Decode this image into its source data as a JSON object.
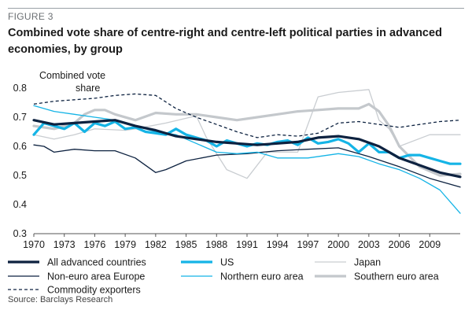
{
  "figure_label": "FIGURE 3",
  "title": "Combined vote share of centre-right and centre-left political parties in advanced economies, by group",
  "source": "Source: Barclays Research",
  "colors": {
    "all_advanced": "#0d2240",
    "us": "#15b4e6",
    "japan": "#c9cdd1",
    "non_euro": "#0d2240",
    "northern_euro": "#15b4e6",
    "southern_euro": "#c4c8cc",
    "commodity": "#0d2240",
    "axis": "#555555"
  },
  "chart_data": {
    "type": "line",
    "ylabel": "Combined vote share",
    "ylim": [
      0.3,
      0.8
    ],
    "yticks": [
      "0.8",
      "0.7",
      "0.6",
      "0.5",
      "0.4",
      "0.3"
    ],
    "xlim": [
      1970,
      2012
    ],
    "xticks": [
      "1970",
      "1973",
      "1976",
      "1979",
      "1982",
      "1985",
      "1988",
      "1991",
      "1994",
      "1997",
      "2000",
      "2003",
      "2006",
      "2009"
    ],
    "grid": false,
    "legend_position": "bottom",
    "series": [
      {
        "name": "Japan",
        "style": "thin-light",
        "x": [
          1970,
          1972,
          1974,
          1976,
          1979,
          1980,
          1983,
          1986,
          1987,
          1989,
          1991,
          1993,
          1996,
          1998,
          2000,
          2003,
          2004,
          2005,
          2006,
          2009,
          2012
        ],
        "y": [
          0.64,
          0.625,
          0.64,
          0.66,
          0.655,
          0.66,
          0.68,
          0.705,
          0.63,
          0.52,
          0.49,
          0.58,
          0.58,
          0.77,
          0.785,
          0.795,
          0.69,
          0.66,
          0.6,
          0.64,
          0.64
        ]
      },
      {
        "name": "Southern euro area",
        "style": "thick-light",
        "x": [
          1970,
          1972,
          1974,
          1975,
          1976,
          1977,
          1978,
          1980,
          1982,
          1984,
          1986,
          1988,
          1990,
          1992,
          1994,
          1996,
          1998,
          2000,
          2002,
          2003,
          2004,
          2005,
          2006,
          2008,
          2010,
          2012
        ],
        "y": [
          0.67,
          0.66,
          0.68,
          0.71,
          0.725,
          0.725,
          0.71,
          0.69,
          0.715,
          0.71,
          0.71,
          0.7,
          0.69,
          0.7,
          0.71,
          0.72,
          0.725,
          0.73,
          0.73,
          0.745,
          0.72,
          0.67,
          0.6,
          0.53,
          0.5,
          0.505
        ]
      },
      {
        "name": "Commodity exporters",
        "style": "dashed",
        "x": [
          1970,
          1972,
          1974,
          1976,
          1978,
          1980,
          1982,
          1984,
          1986,
          1988,
          1990,
          1992,
          1994,
          1996,
          1998,
          2000,
          2002,
          2004,
          2006,
          2008,
          2010,
          2012
        ],
        "y": [
          0.745,
          0.755,
          0.76,
          0.765,
          0.775,
          0.78,
          0.775,
          0.73,
          0.7,
          0.675,
          0.65,
          0.63,
          0.64,
          0.635,
          0.645,
          0.68,
          0.685,
          0.675,
          0.665,
          0.675,
          0.685,
          0.69
        ]
      },
      {
        "name": "Non-euro area Europe",
        "style": "thin-dark",
        "x": [
          1970,
          1971,
          1972,
          1974,
          1976,
          1978,
          1980,
          1982,
          1983,
          1985,
          1988,
          1991,
          1994,
          1997,
          2000,
          2003,
          2006,
          2009,
          2012
        ],
        "y": [
          0.605,
          0.6,
          0.58,
          0.59,
          0.585,
          0.585,
          0.56,
          0.51,
          0.52,
          0.55,
          0.57,
          0.575,
          0.585,
          0.59,
          0.595,
          0.565,
          0.53,
          0.49,
          0.46
        ]
      },
      {
        "name": "Northern euro area",
        "style": "thin-blue",
        "x": [
          1970,
          1972,
          1974,
          1976,
          1978,
          1980,
          1982,
          1984,
          1986,
          1988,
          1990,
          1992,
          1994,
          1997,
          2000,
          2002,
          2004,
          2006,
          2008,
          2010,
          2012
        ],
        "y": [
          0.74,
          0.72,
          0.71,
          0.7,
          0.69,
          0.67,
          0.65,
          0.64,
          0.61,
          0.58,
          0.575,
          0.58,
          0.56,
          0.56,
          0.575,
          0.565,
          0.54,
          0.52,
          0.49,
          0.45,
          0.37
        ]
      },
      {
        "name": "US",
        "style": "thick-blue",
        "x": [
          1970,
          1971,
          1972,
          1973,
          1974,
          1975,
          1976,
          1977,
          1978,
          1979,
          1980,
          1981,
          1982,
          1983,
          1984,
          1985,
          1986,
          1987,
          1988,
          1989,
          1990,
          1991,
          1992,
          1993,
          1994,
          1995,
          1996,
          1997,
          1998,
          1999,
          2000,
          2001,
          2002,
          2003,
          2004,
          2005,
          2006,
          2007,
          2008,
          2009,
          2010,
          2011,
          2012
        ],
        "y": [
          0.64,
          0.68,
          0.67,
          0.66,
          0.68,
          0.65,
          0.68,
          0.67,
          0.685,
          0.66,
          0.665,
          0.65,
          0.645,
          0.64,
          0.66,
          0.64,
          0.63,
          0.62,
          0.6,
          0.62,
          0.61,
          0.6,
          0.61,
          0.605,
          0.615,
          0.62,
          0.605,
          0.63,
          0.61,
          0.615,
          0.625,
          0.61,
          0.58,
          0.61,
          0.58,
          0.58,
          0.56,
          0.57,
          0.57,
          0.56,
          0.55,
          0.54,
          0.54
        ]
      },
      {
        "name": "All advanced countries",
        "style": "thick-dark",
        "x": [
          1970,
          1972,
          1974,
          1976,
          1978,
          1980,
          1982,
          1984,
          1986,
          1988,
          1990,
          1992,
          1994,
          1996,
          1998,
          2000,
          2002,
          2004,
          2006,
          2008,
          2010,
          2012
        ],
        "y": [
          0.69,
          0.675,
          0.68,
          0.685,
          0.69,
          0.67,
          0.655,
          0.635,
          0.625,
          0.615,
          0.61,
          0.605,
          0.61,
          0.615,
          0.63,
          0.635,
          0.625,
          0.6,
          0.56,
          0.535,
          0.51,
          0.495
        ]
      }
    ],
    "legend": [
      {
        "label": "All advanced countries",
        "style": "thick-dark"
      },
      {
        "label": "US",
        "style": "thick-blue"
      },
      {
        "label": "Japan",
        "style": "thin-light"
      },
      {
        "label": "Non-euro area Europe",
        "style": "thin-dark"
      },
      {
        "label": "Northern euro area",
        "style": "thin-blue"
      },
      {
        "label": "Southern euro area",
        "style": "thick-light"
      },
      {
        "label": "Commodity exporters",
        "style": "dashed"
      }
    ]
  }
}
